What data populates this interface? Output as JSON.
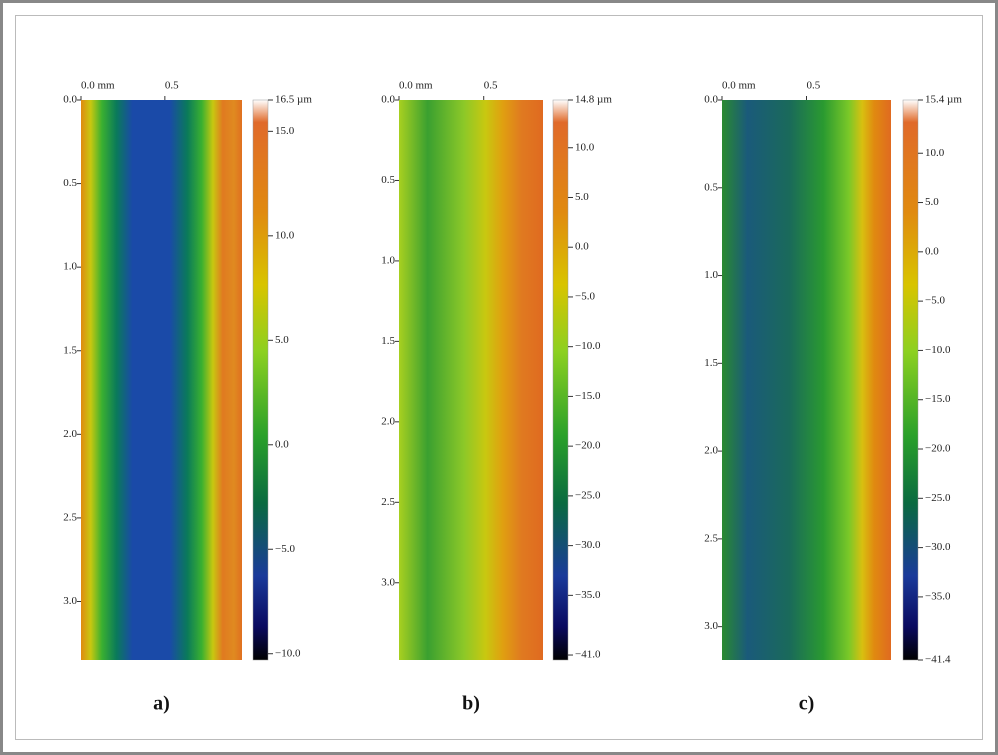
{
  "panels": [
    {
      "label": "a)",
      "xlim": [
        0,
        0.96
      ],
      "ylim": [
        0,
        3.35
      ],
      "clim": [
        -10.3,
        16.5
      ],
      "xticks": [
        {
          "value": 0,
          "label": "0.0 mm"
        },
        {
          "value": 0.5,
          "label": "0.5"
        }
      ],
      "yticks": [
        {
          "value": 0,
          "label": "0.0"
        },
        {
          "value": 0.5,
          "label": "0.5"
        },
        {
          "value": 1,
          "label": "1.0"
        },
        {
          "value": 1.5,
          "label": "1.5"
        },
        {
          "value": 2,
          "label": "2.0"
        },
        {
          "value": 2.5,
          "label": "2.5"
        },
        {
          "value": 3,
          "label": "3.0"
        }
      ],
      "cticks": [
        {
          "value": 16.5,
          "label": "16.5 µm"
        },
        {
          "value": 15,
          "label": "15.0"
        },
        {
          "value": 10,
          "label": "10.0"
        },
        {
          "value": 5,
          "label": "5.0"
        },
        {
          "value": 0,
          "label": "0.0"
        },
        {
          "value": -5,
          "label": "−5.0"
        },
        {
          "value": -10,
          "label": "−10.0"
        }
      ]
    },
    {
      "label": "b)",
      "xlim": [
        0,
        0.85
      ],
      "ylim": [
        0,
        3.48
      ],
      "clim": [
        -41.5,
        14.8
      ],
      "xticks": [
        {
          "value": 0,
          "label": "0.0 mm"
        },
        {
          "value": 0.5,
          "label": "0.5"
        }
      ],
      "yticks": [
        {
          "value": 0,
          "label": "0.0"
        },
        {
          "value": 0.5,
          "label": "0.5"
        },
        {
          "value": 1,
          "label": "1.0"
        },
        {
          "value": 1.5,
          "label": "1.5"
        },
        {
          "value": 2,
          "label": "2.0"
        },
        {
          "value": 2.5,
          "label": "2.5"
        },
        {
          "value": 3,
          "label": "3.0"
        }
      ],
      "cticks": [
        {
          "value": 14.8,
          "label": "14.8 µm"
        },
        {
          "value": 10,
          "label": "10.0"
        },
        {
          "value": 5,
          "label": "5.0"
        },
        {
          "value": 0,
          "label": "0.0"
        },
        {
          "value": -5,
          "label": "−5.0"
        },
        {
          "value": -10,
          "label": "−10.0"
        },
        {
          "value": -15,
          "label": "−15.0"
        },
        {
          "value": -20,
          "label": "−20.0"
        },
        {
          "value": -25,
          "label": "−25.0"
        },
        {
          "value": -30,
          "label": "−30.0"
        },
        {
          "value": -35,
          "label": "−35.0"
        },
        {
          "value": -41,
          "label": "−41.0"
        }
      ]
    },
    {
      "label": "c)",
      "xlim": [
        0,
        1.0
      ],
      "ylim": [
        0,
        3.19
      ],
      "clim": [
        -41.4,
        15.4
      ],
      "xticks": [
        {
          "value": 0,
          "label": "0.0 mm"
        },
        {
          "value": 0.5,
          "label": "0.5"
        }
      ],
      "yticks": [
        {
          "value": 0,
          "label": "0.0"
        },
        {
          "value": 0.5,
          "label": "0.5"
        },
        {
          "value": 1,
          "label": "1.0"
        },
        {
          "value": 1.5,
          "label": "1.5"
        },
        {
          "value": 2,
          "label": "2.0"
        },
        {
          "value": 2.5,
          "label": "2.5"
        },
        {
          "value": 3,
          "label": "3.0"
        }
      ],
      "cticks": [
        {
          "value": 15.4,
          "label": "15.4 µm"
        },
        {
          "value": 10,
          "label": "10.0"
        },
        {
          "value": 5,
          "label": "5.0"
        },
        {
          "value": 0,
          "label": "0.0"
        },
        {
          "value": -5,
          "label": "−5.0"
        },
        {
          "value": -10,
          "label": "−10.0"
        },
        {
          "value": -15,
          "label": "−15.0"
        },
        {
          "value": -20,
          "label": "−20.0"
        },
        {
          "value": -25,
          "label": "−25.0"
        },
        {
          "value": -30,
          "label": "−30.0"
        },
        {
          "value": -35,
          "label": "−35.0"
        },
        {
          "value": -41.4,
          "label": "−41.4"
        }
      ]
    }
  ]
}
